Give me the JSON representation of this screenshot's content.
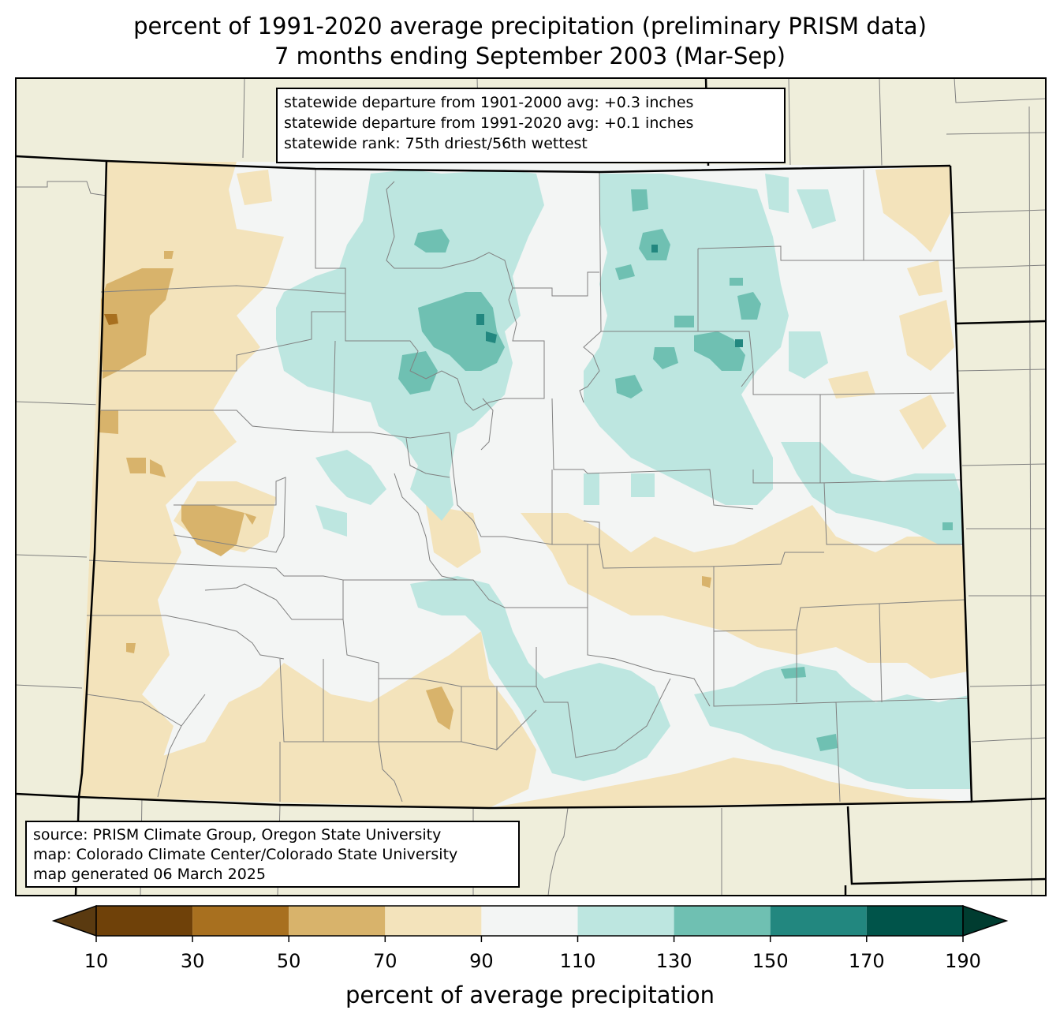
{
  "title": {
    "line1": "percent of 1991-2020 average precipitation (preliminary PRISM data)",
    "line2": "7 months ending September 2003 (Mar-Sep)"
  },
  "stats": {
    "line1": "statewide departure from 1901-2000 avg: +0.3 inches",
    "line2": "statewide departure from 1991-2020 avg: +0.1 inches",
    "line3": "statewide rank: 75th driest/56th wettest"
  },
  "source": {
    "line1": "source: PRISM Climate Group, Oregon State University",
    "line2": "map: Colorado Climate Center/Colorado State University",
    "line3": "map generated 06 March 2025"
  },
  "colorbar": {
    "label": "percent of average precipitation",
    "ticks": [
      "10",
      "30",
      "50",
      "70",
      "90",
      "110",
      "130",
      "150",
      "170",
      "190"
    ],
    "colors": [
      "#5a3a10",
      "#6f4109",
      "#a8701f",
      "#d8b36b",
      "#f3e3bb",
      "#f3f5f4",
      "#bde6e0",
      "#6fc0b2",
      "#22877f",
      "#00544a",
      "#003c30"
    ]
  },
  "colors": {
    "outside_land": "#efeedb",
    "state_fill": "#f3f5f4",
    "county_lines": "#808080",
    "state_lines": "#000000"
  }
}
